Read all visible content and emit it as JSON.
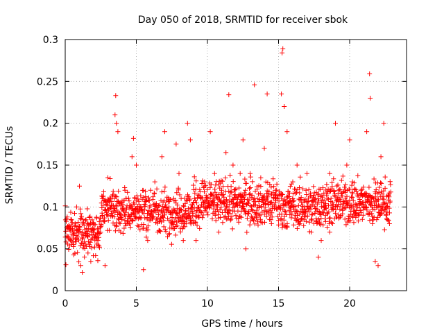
{
  "chart_data": {
    "type": "scatter",
    "title": "Day 050 of 2018, SRMTID for receiver sbok",
    "xlabel": "GPS time / hours",
    "ylabel": "SRMTID / TECUs",
    "xlim": [
      0,
      24
    ],
    "ylim": [
      0,
      0.3
    ],
    "xticks": [
      0,
      5,
      10,
      15,
      20
    ],
    "xtick_labels": [
      "0",
      "5",
      "10",
      "15",
      "20"
    ],
    "yticks": [
      0,
      0.05,
      0.1,
      0.15,
      0.2,
      0.25,
      0.3
    ],
    "ytick_labels": [
      "0",
      "0.05",
      "0.1",
      "0.15",
      "0.2",
      "0.25",
      "0.3"
    ],
    "grid": true,
    "marker": "+",
    "color": "#ff0000",
    "series": [
      {
        "name": "SRMTID",
        "x_range": [
          0,
          22.9
        ],
        "points": [
          [
            0.05,
            0.031
          ],
          [
            0.2,
            0.065
          ],
          [
            0.4,
            0.085
          ],
          [
            0.6,
            0.055
          ],
          [
            0.8,
            0.1
          ],
          [
            1.0,
            0.125
          ],
          [
            1.1,
            0.03
          ],
          [
            1.2,
            0.022
          ],
          [
            1.4,
            0.07
          ],
          [
            1.6,
            0.045
          ],
          [
            1.8,
            0.035
          ],
          [
            2.0,
            0.08
          ],
          [
            2.3,
            0.06
          ],
          [
            2.6,
            0.11
          ],
          [
            2.8,
            0.03
          ],
          [
            3.0,
            0.135
          ],
          [
            3.3,
            0.09
          ],
          [
            3.5,
            0.21
          ],
          [
            3.55,
            0.233
          ],
          [
            3.6,
            0.2
          ],
          [
            3.7,
            0.19
          ],
          [
            3.9,
            0.07
          ],
          [
            4.2,
            0.12
          ],
          [
            4.5,
            0.08
          ],
          [
            4.7,
            0.16
          ],
          [
            4.8,
            0.182
          ],
          [
            5.0,
            0.15
          ],
          [
            5.2,
            0.1
          ],
          [
            5.5,
            0.025
          ],
          [
            5.8,
            0.06
          ],
          [
            6.0,
            0.12
          ],
          [
            6.3,
            0.13
          ],
          [
            6.5,
            0.07
          ],
          [
            6.8,
            0.16
          ],
          [
            7.0,
            0.19
          ],
          [
            7.3,
            0.1
          ],
          [
            7.5,
            0.08
          ],
          [
            7.8,
            0.175
          ],
          [
            8.0,
            0.14
          ],
          [
            8.3,
            0.06
          ],
          [
            8.6,
            0.2
          ],
          [
            8.8,
            0.18
          ],
          [
            9.0,
            0.08
          ],
          [
            9.2,
            0.06
          ],
          [
            9.5,
            0.11
          ],
          [
            9.8,
            0.13
          ],
          [
            10.0,
            0.1
          ],
          [
            10.2,
            0.19
          ],
          [
            10.5,
            0.14
          ],
          [
            10.8,
            0.07
          ],
          [
            11.0,
            0.12
          ],
          [
            11.3,
            0.165
          ],
          [
            11.5,
            0.234
          ],
          [
            11.8,
            0.15
          ],
          [
            12.0,
            0.09
          ],
          [
            12.3,
            0.14
          ],
          [
            12.5,
            0.18
          ],
          [
            12.7,
            0.05
          ],
          [
            13.0,
            0.14
          ],
          [
            13.3,
            0.246
          ],
          [
            13.5,
            0.11
          ],
          [
            13.8,
            0.1
          ],
          [
            14.0,
            0.17
          ],
          [
            14.2,
            0.235
          ],
          [
            14.5,
            0.08
          ],
          [
            14.8,
            0.12
          ],
          [
            15.0,
            0.1
          ],
          [
            15.2,
            0.235
          ],
          [
            15.25,
            0.284
          ],
          [
            15.3,
            0.289
          ],
          [
            15.4,
            0.22
          ],
          [
            15.6,
            0.19
          ],
          [
            15.8,
            0.1
          ],
          [
            16.0,
            0.13
          ],
          [
            16.3,
            0.15
          ],
          [
            16.5,
            0.08
          ],
          [
            16.8,
            0.1
          ],
          [
            17.0,
            0.14
          ],
          [
            17.3,
            0.07
          ],
          [
            17.6,
            0.11
          ],
          [
            17.8,
            0.04
          ],
          [
            18.0,
            0.06
          ],
          [
            18.3,
            0.09
          ],
          [
            18.6,
            0.14
          ],
          [
            18.8,
            0.08
          ],
          [
            19.0,
            0.2
          ],
          [
            19.2,
            0.12
          ],
          [
            19.5,
            0.1
          ],
          [
            19.8,
            0.15
          ],
          [
            20.0,
            0.18
          ],
          [
            20.2,
            0.13
          ],
          [
            20.5,
            0.09
          ],
          [
            20.8,
            0.12
          ],
          [
            21.0,
            0.1
          ],
          [
            21.2,
            0.19
          ],
          [
            21.4,
            0.259
          ],
          [
            21.45,
            0.23
          ],
          [
            21.6,
            0.08
          ],
          [
            21.8,
            0.035
          ],
          [
            22.0,
            0.03
          ],
          [
            22.2,
            0.16
          ],
          [
            22.4,
            0.2
          ],
          [
            22.6,
            0.1
          ],
          [
            22.8,
            0.08
          ]
        ]
      }
    ]
  }
}
